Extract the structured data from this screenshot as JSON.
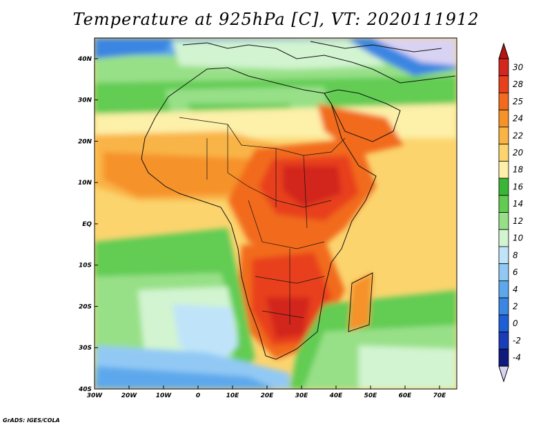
{
  "title": "Temperature at 925hPa [C], VT: 2020111912",
  "credit": "GrADS: IGES/COLA",
  "map": {
    "lon_ticks": [
      "30W",
      "20W",
      "10W",
      "0",
      "10E",
      "20E",
      "30E",
      "40E",
      "50E",
      "60E",
      "70E"
    ],
    "lat_ticks": [
      "40N",
      "30N",
      "20N",
      "10N",
      "EQ",
      "10S",
      "20S",
      "30S",
      "40S"
    ]
  },
  "colorbar": {
    "labels": [
      "30",
      "28",
      "25",
      "24",
      "22",
      "20",
      "18",
      "16",
      "14",
      "12",
      "10",
      "8",
      "6",
      "4",
      "2",
      "0",
      "-2",
      "-4"
    ],
    "colors": [
      "#d2261e",
      "#e8401c",
      "#f26a1e",
      "#f6922a",
      "#f9b446",
      "#fbd46e",
      "#fdf0a8",
      "#39b734",
      "#62cc52",
      "#98e088",
      "#d2f4d0",
      "#bfe4f9",
      "#92c9f4",
      "#5da8ec",
      "#3a86e2",
      "#1e5fd6",
      "#1a3cb8",
      "#101a7e"
    ],
    "top_color": "#b31510",
    "bottom_color": "#d9d3f3"
  }
}
